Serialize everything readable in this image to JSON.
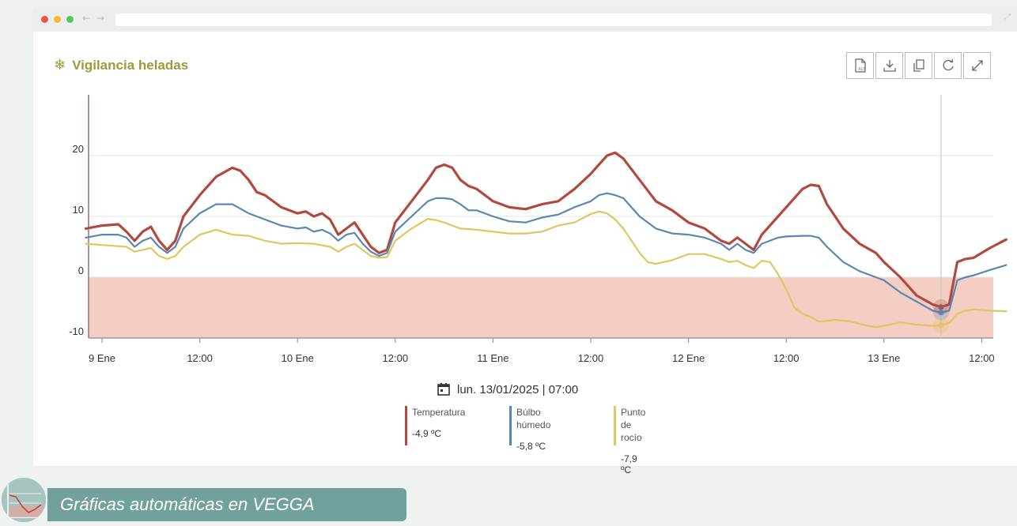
{
  "window": {
    "dot_colors": [
      "#e8574b",
      "#f3bd2f",
      "#5fc15a"
    ],
    "back_icon": "arrow-left-icon",
    "forward_icon": "arrow-right-icon",
    "expand_icon": "expand-icon"
  },
  "card": {
    "title": "Vigilancia heladas",
    "title_icon": "snowflake-icon",
    "title_color": "#9c9a3a"
  },
  "toolbar": {
    "buttons": [
      {
        "icon": "xls-export-icon"
      },
      {
        "icon": "download-icon"
      },
      {
        "icon": "copy-icon"
      },
      {
        "icon": "refresh-icon"
      },
      {
        "icon": "fullscreen-icon"
      }
    ]
  },
  "chart_data": {
    "type": "line",
    "title": "Vigilancia heladas",
    "ylim": [
      -10,
      30
    ],
    "yticks": [
      -10,
      0,
      10,
      20
    ],
    "xlim_hours": [
      -4,
      111
    ],
    "xticks": [
      {
        "hour": 0,
        "label": "9 Ene"
      },
      {
        "hour": 12,
        "label": "12:00"
      },
      {
        "hour": 24,
        "label": "10 Ene"
      },
      {
        "hour": 36,
        "label": "12:00"
      },
      {
        "hour": 48,
        "label": "11 Ene"
      },
      {
        "hour": 60,
        "label": "12:00"
      },
      {
        "hour": 72,
        "label": "12 Ene"
      },
      {
        "hour": 84,
        "label": "12:00"
      },
      {
        "hour": 96,
        "label": "13 Ene"
      },
      {
        "hour": 108,
        "label": "12:00"
      }
    ],
    "frost_band": {
      "from": -10,
      "to": 0,
      "color": "#f4cdc3"
    },
    "crosshair_hour": 103,
    "series": [
      {
        "name": "Temperatura",
        "color": "#b04a3e",
        "points": [
          [
            -2,
            8
          ],
          [
            0,
            8.5
          ],
          [
            2,
            8.7
          ],
          [
            3,
            7.5
          ],
          [
            4,
            6
          ],
          [
            5,
            7.5
          ],
          [
            6,
            8.3
          ],
          [
            7,
            6
          ],
          [
            8,
            4.5
          ],
          [
            9,
            6
          ],
          [
            10,
            10
          ],
          [
            12,
            13.5
          ],
          [
            14,
            16.5
          ],
          [
            16,
            18
          ],
          [
            17,
            17.5
          ],
          [
            18,
            16
          ],
          [
            19,
            14
          ],
          [
            20,
            13.5
          ],
          [
            22,
            11.5
          ],
          [
            24,
            10.5
          ],
          [
            25,
            10.8
          ],
          [
            26,
            10
          ],
          [
            27,
            10.5
          ],
          [
            28,
            9.5
          ],
          [
            29,
            7
          ],
          [
            30,
            8
          ],
          [
            31,
            9
          ],
          [
            32,
            7
          ],
          [
            33,
            5
          ],
          [
            34,
            4
          ],
          [
            35,
            4.5
          ],
          [
            36,
            9
          ],
          [
            38,
            12.5
          ],
          [
            40,
            16
          ],
          [
            41,
            18
          ],
          [
            42,
            18.5
          ],
          [
            43,
            18
          ],
          [
            44,
            16
          ],
          [
            45,
            15
          ],
          [
            46,
            14.5
          ],
          [
            48,
            12.5
          ],
          [
            50,
            11.5
          ],
          [
            52,
            11.2
          ],
          [
            54,
            12
          ],
          [
            56,
            12.5
          ],
          [
            58,
            14.5
          ],
          [
            60,
            17
          ],
          [
            62,
            20
          ],
          [
            63,
            20.5
          ],
          [
            64,
            19.5
          ],
          [
            66,
            16
          ],
          [
            68,
            12.5
          ],
          [
            70,
            11
          ],
          [
            72,
            9
          ],
          [
            74,
            8
          ],
          [
            76,
            6
          ],
          [
            77,
            5.5
          ],
          [
            78,
            6.5
          ],
          [
            79,
            5.5
          ],
          [
            80,
            4.5
          ],
          [
            81,
            7
          ],
          [
            83,
            10
          ],
          [
            84,
            11.5
          ],
          [
            86,
            14.5
          ],
          [
            87,
            15.2
          ],
          [
            88,
            15
          ],
          [
            89,
            12
          ],
          [
            91,
            8
          ],
          [
            93,
            5.5
          ],
          [
            95,
            4
          ],
          [
            96,
            2.5
          ],
          [
            98,
            0
          ],
          [
            100,
            -3
          ],
          [
            102,
            -4.5
          ],
          [
            103,
            -4.9
          ],
          [
            104,
            -4.5
          ],
          [
            105,
            2.5
          ],
          [
            106,
            3
          ],
          [
            107,
            3.2
          ],
          [
            109,
            4.8
          ],
          [
            111,
            6.2
          ]
        ]
      },
      {
        "name": "Bulbo humedo",
        "color": "#5a86b2",
        "points": [
          [
            -2,
            6.5
          ],
          [
            0,
            7
          ],
          [
            2,
            7
          ],
          [
            3,
            6.5
          ],
          [
            4,
            5
          ],
          [
            5,
            6
          ],
          [
            6,
            6.5
          ],
          [
            7,
            5
          ],
          [
            8,
            4
          ],
          [
            9,
            5
          ],
          [
            10,
            8
          ],
          [
            12,
            10.5
          ],
          [
            14,
            12
          ],
          [
            16,
            12
          ],
          [
            18,
            10.5
          ],
          [
            20,
            9.5
          ],
          [
            22,
            8.5
          ],
          [
            24,
            8
          ],
          [
            25,
            8.2
          ],
          [
            26,
            7.5
          ],
          [
            27,
            7.8
          ],
          [
            28,
            7.2
          ],
          [
            29,
            6
          ],
          [
            30,
            7
          ],
          [
            31,
            7.3
          ],
          [
            32,
            5.5
          ],
          [
            33,
            4.2
          ],
          [
            34,
            3.5
          ],
          [
            35,
            4
          ],
          [
            36,
            7.5
          ],
          [
            38,
            10
          ],
          [
            40,
            12.5
          ],
          [
            41,
            13
          ],
          [
            42,
            13
          ],
          [
            43,
            12.8
          ],
          [
            44,
            12
          ],
          [
            45,
            11
          ],
          [
            46,
            11
          ],
          [
            48,
            10
          ],
          [
            50,
            9.2
          ],
          [
            52,
            9
          ],
          [
            54,
            9.8
          ],
          [
            56,
            10.3
          ],
          [
            58,
            11.5
          ],
          [
            60,
            12.5
          ],
          [
            61,
            13.5
          ],
          [
            62,
            13.8
          ],
          [
            63,
            13.5
          ],
          [
            64,
            13
          ],
          [
            66,
            10
          ],
          [
            68,
            8
          ],
          [
            70,
            7.2
          ],
          [
            72,
            7
          ],
          [
            74,
            6.5
          ],
          [
            76,
            5.5
          ],
          [
            77,
            4.5
          ],
          [
            78,
            5.5
          ],
          [
            79,
            4.5
          ],
          [
            80,
            4
          ],
          [
            81,
            5.5
          ],
          [
            83,
            6.5
          ],
          [
            84,
            6.7
          ],
          [
            86,
            6.8
          ],
          [
            87,
            6.8
          ],
          [
            88,
            6.5
          ],
          [
            89,
            5
          ],
          [
            91,
            2.5
          ],
          [
            93,
            1
          ],
          [
            95,
            0
          ],
          [
            96,
            -0.5
          ],
          [
            98,
            -2.5
          ],
          [
            100,
            -4
          ],
          [
            102,
            -5.5
          ],
          [
            103,
            -5.8
          ],
          [
            104,
            -5.5
          ],
          [
            105,
            -0.5
          ],
          [
            106,
            0
          ],
          [
            107,
            0.3
          ],
          [
            109,
            1.2
          ],
          [
            111,
            2
          ]
        ]
      },
      {
        "name": "Punto de rocio",
        "color": "#e0c560",
        "points": [
          [
            -2,
            5.5
          ],
          [
            0,
            5.3
          ],
          [
            2,
            5.1
          ],
          [
            3,
            5
          ],
          [
            4,
            4.2
          ],
          [
            5,
            4.5
          ],
          [
            6,
            4.8
          ],
          [
            7,
            3.5
          ],
          [
            8,
            3
          ],
          [
            9,
            3.5
          ],
          [
            10,
            5
          ],
          [
            12,
            7
          ],
          [
            14,
            7.8
          ],
          [
            16,
            7
          ],
          [
            18,
            6.8
          ],
          [
            20,
            6
          ],
          [
            22,
            5.5
          ],
          [
            24,
            5.6
          ],
          [
            26,
            5.5
          ],
          [
            28,
            5
          ],
          [
            29,
            4.2
          ],
          [
            30,
            5
          ],
          [
            31,
            5.5
          ],
          [
            32,
            4.5
          ],
          [
            33,
            3.5
          ],
          [
            34,
            3.2
          ],
          [
            35,
            3.3
          ],
          [
            36,
            6
          ],
          [
            38,
            8
          ],
          [
            40,
            9.6
          ],
          [
            41,
            9.4
          ],
          [
            42,
            9
          ],
          [
            43,
            8.5
          ],
          [
            44,
            8
          ],
          [
            46,
            7.8
          ],
          [
            48,
            7.5
          ],
          [
            50,
            7.2
          ],
          [
            52,
            7.2
          ],
          [
            54,
            7.5
          ],
          [
            56,
            8.5
          ],
          [
            58,
            9
          ],
          [
            60,
            10.4
          ],
          [
            61,
            10.8
          ],
          [
            62,
            10.5
          ],
          [
            63,
            9.5
          ],
          [
            64,
            8
          ],
          [
            66,
            4
          ],
          [
            67,
            2.5
          ],
          [
            68,
            2.2
          ],
          [
            70,
            2.8
          ],
          [
            72,
            3.8
          ],
          [
            74,
            3.8
          ],
          [
            76,
            3
          ],
          [
            77,
            2.5
          ],
          [
            78,
            2.7
          ],
          [
            79,
            2
          ],
          [
            80,
            1.5
          ],
          [
            81,
            2.7
          ],
          [
            82,
            2.5
          ],
          [
            83,
            0.5
          ],
          [
            84,
            -2
          ],
          [
            85,
            -5
          ],
          [
            86,
            -6
          ],
          [
            87,
            -6.5
          ],
          [
            88,
            -7.3
          ],
          [
            89,
            -7.2
          ],
          [
            90,
            -7
          ],
          [
            92,
            -7.3
          ],
          [
            94,
            -8
          ],
          [
            95,
            -8.2
          ],
          [
            96,
            -8
          ],
          [
            98,
            -7.4
          ],
          [
            100,
            -7.8
          ],
          [
            102,
            -8
          ],
          [
            103,
            -7.9
          ],
          [
            104,
            -7.5
          ],
          [
            105,
            -6
          ],
          [
            106,
            -5.5
          ],
          [
            107,
            -5.3
          ],
          [
            109,
            -5.5
          ],
          [
            111,
            -5.6
          ]
        ]
      }
    ]
  },
  "footer": {
    "calendar_icon": "calendar-icon",
    "datetime": "lun. 13/01/2025 | 07:00"
  },
  "legend": [
    {
      "name": "Temperatura",
      "value": "-4,9 ºC",
      "color": "#b04a3e"
    },
    {
      "name": "Búlbo húmedo",
      "value": "-5,8 ºC",
      "color": "#5a86b2"
    },
    {
      "name": "Punto de rocío",
      "value": "-7,9 ºC",
      "color": "#e0c560"
    }
  ],
  "caption": {
    "text": "Gráficas automáticas en VEGGA",
    "thumb_icon": "chart-thumbnail-icon"
  }
}
